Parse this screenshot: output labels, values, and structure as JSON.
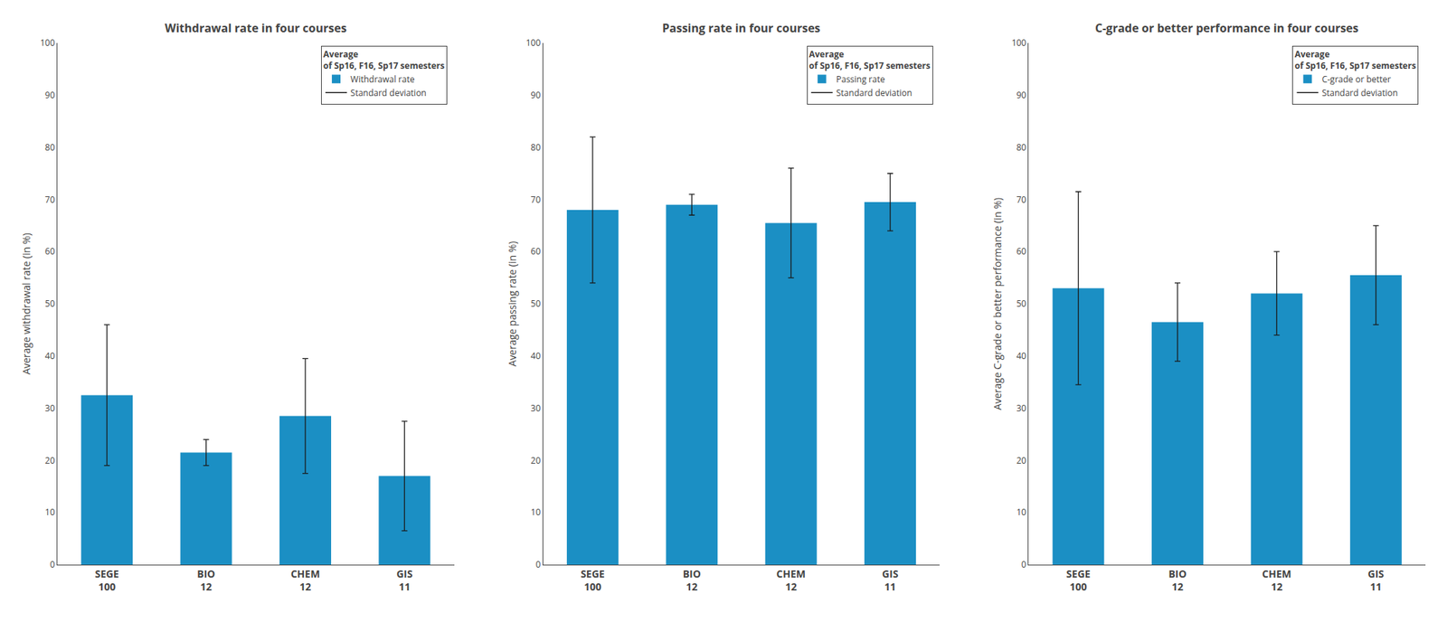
{
  "chart_data": [
    {
      "type": "bar",
      "title": "Withdrawal rate in four courses",
      "ylabel": "Average withdrawal rate (in %)",
      "categories": [
        "SEGE\n100",
        "BIO\n12",
        "CHEM\n12",
        "GIS\n11"
      ],
      "series": [
        {
          "name": "Withdrawal rate",
          "color": "#1B8FC4",
          "values": [
            32.5,
            21.5,
            28.5,
            17.0
          ],
          "errors": [
            13.5,
            2.5,
            11.0,
            10.5
          ]
        }
      ],
      "error_name": "Standard deviation",
      "error_color": "#1a1a1a",
      "legend_title": "Average\nof Sp16, F16, Sp17 semesters",
      "ylim": [
        0,
        100
      ],
      "yticks": [
        0,
        10,
        20,
        30,
        40,
        50,
        60,
        70,
        80,
        90,
        100
      ],
      "grid": false,
      "legend": "upper right"
    },
    {
      "type": "bar",
      "title": "Passing rate in four courses",
      "ylabel": "Average passing rate (in %)",
      "categories": [
        "SEGE\n100",
        "BIO\n12",
        "CHEM\n12",
        "GIS\n11"
      ],
      "series": [
        {
          "name": "Passing rate",
          "color": "#1B8FC4",
          "values": [
            68.0,
            69.0,
            65.5,
            69.5
          ],
          "errors": [
            14.0,
            2.0,
            10.5,
            5.5
          ]
        }
      ],
      "error_name": "Standard deviation",
      "error_color": "#1a1a1a",
      "legend_title": "Average\nof Sp16, F16, Sp17 semesters",
      "ylim": [
        0,
        100
      ],
      "yticks": [
        0,
        10,
        20,
        30,
        40,
        50,
        60,
        70,
        80,
        90,
        100
      ],
      "grid": false,
      "legend": "upper right"
    },
    {
      "type": "bar",
      "title": "C-grade or better performance in four courses",
      "ylabel": "Average C-grade or better performance (in %)",
      "categories": [
        "SEGE\n100",
        "BIO\n12",
        "CHEM\n12",
        "GIS\n11"
      ],
      "series": [
        {
          "name": "C-grade or better",
          "color": "#1B8FC4",
          "values": [
            53.0,
            46.5,
            52.0,
            55.5
          ],
          "errors": [
            18.5,
            7.5,
            8.0,
            9.5
          ]
        }
      ],
      "error_name": "Standard deviation",
      "error_color": "#1a1a1a",
      "legend_title": "Average\nof Sp16, F16, Sp17 semesters",
      "ylim": [
        0,
        100
      ],
      "yticks": [
        0,
        10,
        20,
        30,
        40,
        50,
        60,
        70,
        80,
        90,
        100
      ],
      "grid": false,
      "legend": "upper right"
    }
  ]
}
